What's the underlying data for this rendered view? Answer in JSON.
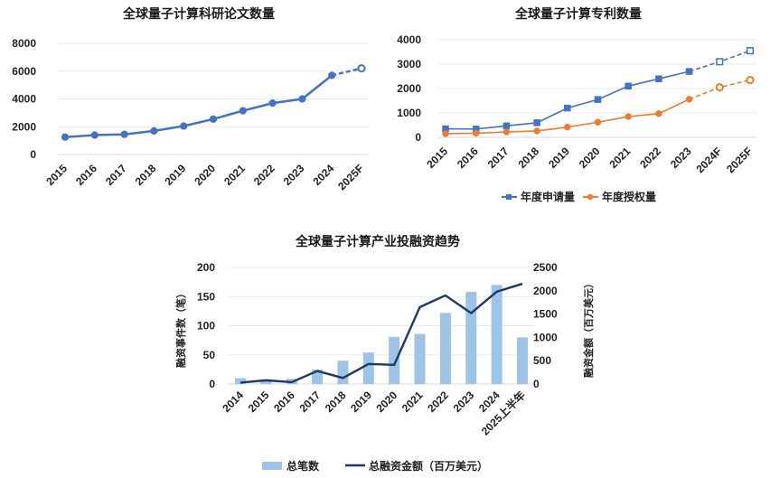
{
  "chart_data": [
    {
      "type": "line",
      "title": "全球量子计算科研论文数量",
      "categories": [
        "2015",
        "2016",
        "2017",
        "2018",
        "2019",
        "2020",
        "2021",
        "2022",
        "2023",
        "2024",
        "2025F"
      ],
      "series": [
        {
          "values": [
            1250,
            1400,
            1450,
            1700,
            2050,
            2550,
            3150,
            3700,
            4000,
            5700,
            6200
          ],
          "forecast_from_index": 9,
          "color": "#4472c4"
        }
      ],
      "ylim": [
        0,
        8000
      ],
      "yticks": [
        0,
        2000,
        4000,
        6000,
        8000
      ],
      "grid": "horizontal"
    },
    {
      "type": "line",
      "title": "全球量子计算专利数量",
      "categories": [
        "2015",
        "2016",
        "2017",
        "2018",
        "2019",
        "2020",
        "2021",
        "2022",
        "2023",
        "2024F",
        "2025F"
      ],
      "series": [
        {
          "name": "年度申请量",
          "values": [
            350,
            340,
            470,
            600,
            1200,
            1550,
            2100,
            2400,
            2700,
            3100,
            3550
          ],
          "forecast_from_index": 8,
          "color": "#4472c4",
          "marker": "square"
        },
        {
          "name": "年度授权量",
          "values": [
            150,
            170,
            220,
            260,
            420,
            620,
            850,
            970,
            1560,
            2050,
            2350
          ],
          "forecast_from_index": 8,
          "color": "#ed7d31",
          "marker": "circle"
        }
      ],
      "ylim": [
        0,
        4000
      ],
      "yticks": [
        0,
        1000,
        2000,
        3000,
        4000
      ],
      "legend": "bottom",
      "grid": "horizontal"
    },
    {
      "type": "bar+line",
      "title": "全球量子计算产业投融资趋势",
      "categories": [
        "2014",
        "2015",
        "2016",
        "2017",
        "2018",
        "2019",
        "2020",
        "2021",
        "2022",
        "2023",
        "2024",
        "2025上半年"
      ],
      "bar_series": {
        "name": "总笔数",
        "values": [
          10,
          8,
          9,
          25,
          40,
          54,
          81,
          86,
          122,
          158,
          170,
          80
        ],
        "color": "#9dc3e6"
      },
      "line_series": {
        "name": "总融资金额（百万美元）",
        "values": [
          30,
          80,
          40,
          280,
          130,
          430,
          410,
          1650,
          1900,
          1520,
          1980,
          2150
        ],
        "color": "#1f3864"
      },
      "ylabel_left": "融资事件数（笔）",
      "ylabel_right": "融资金额（百万美元）",
      "ylim_left": [
        0,
        200
      ],
      "yticks_left": [
        0,
        50,
        100,
        150,
        200
      ],
      "ylim_right": [
        0,
        2500
      ],
      "yticks_right": [
        0,
        500,
        1000,
        1500,
        2000,
        2500
      ],
      "legend": "bottom",
      "grid": "horizontal"
    }
  ]
}
